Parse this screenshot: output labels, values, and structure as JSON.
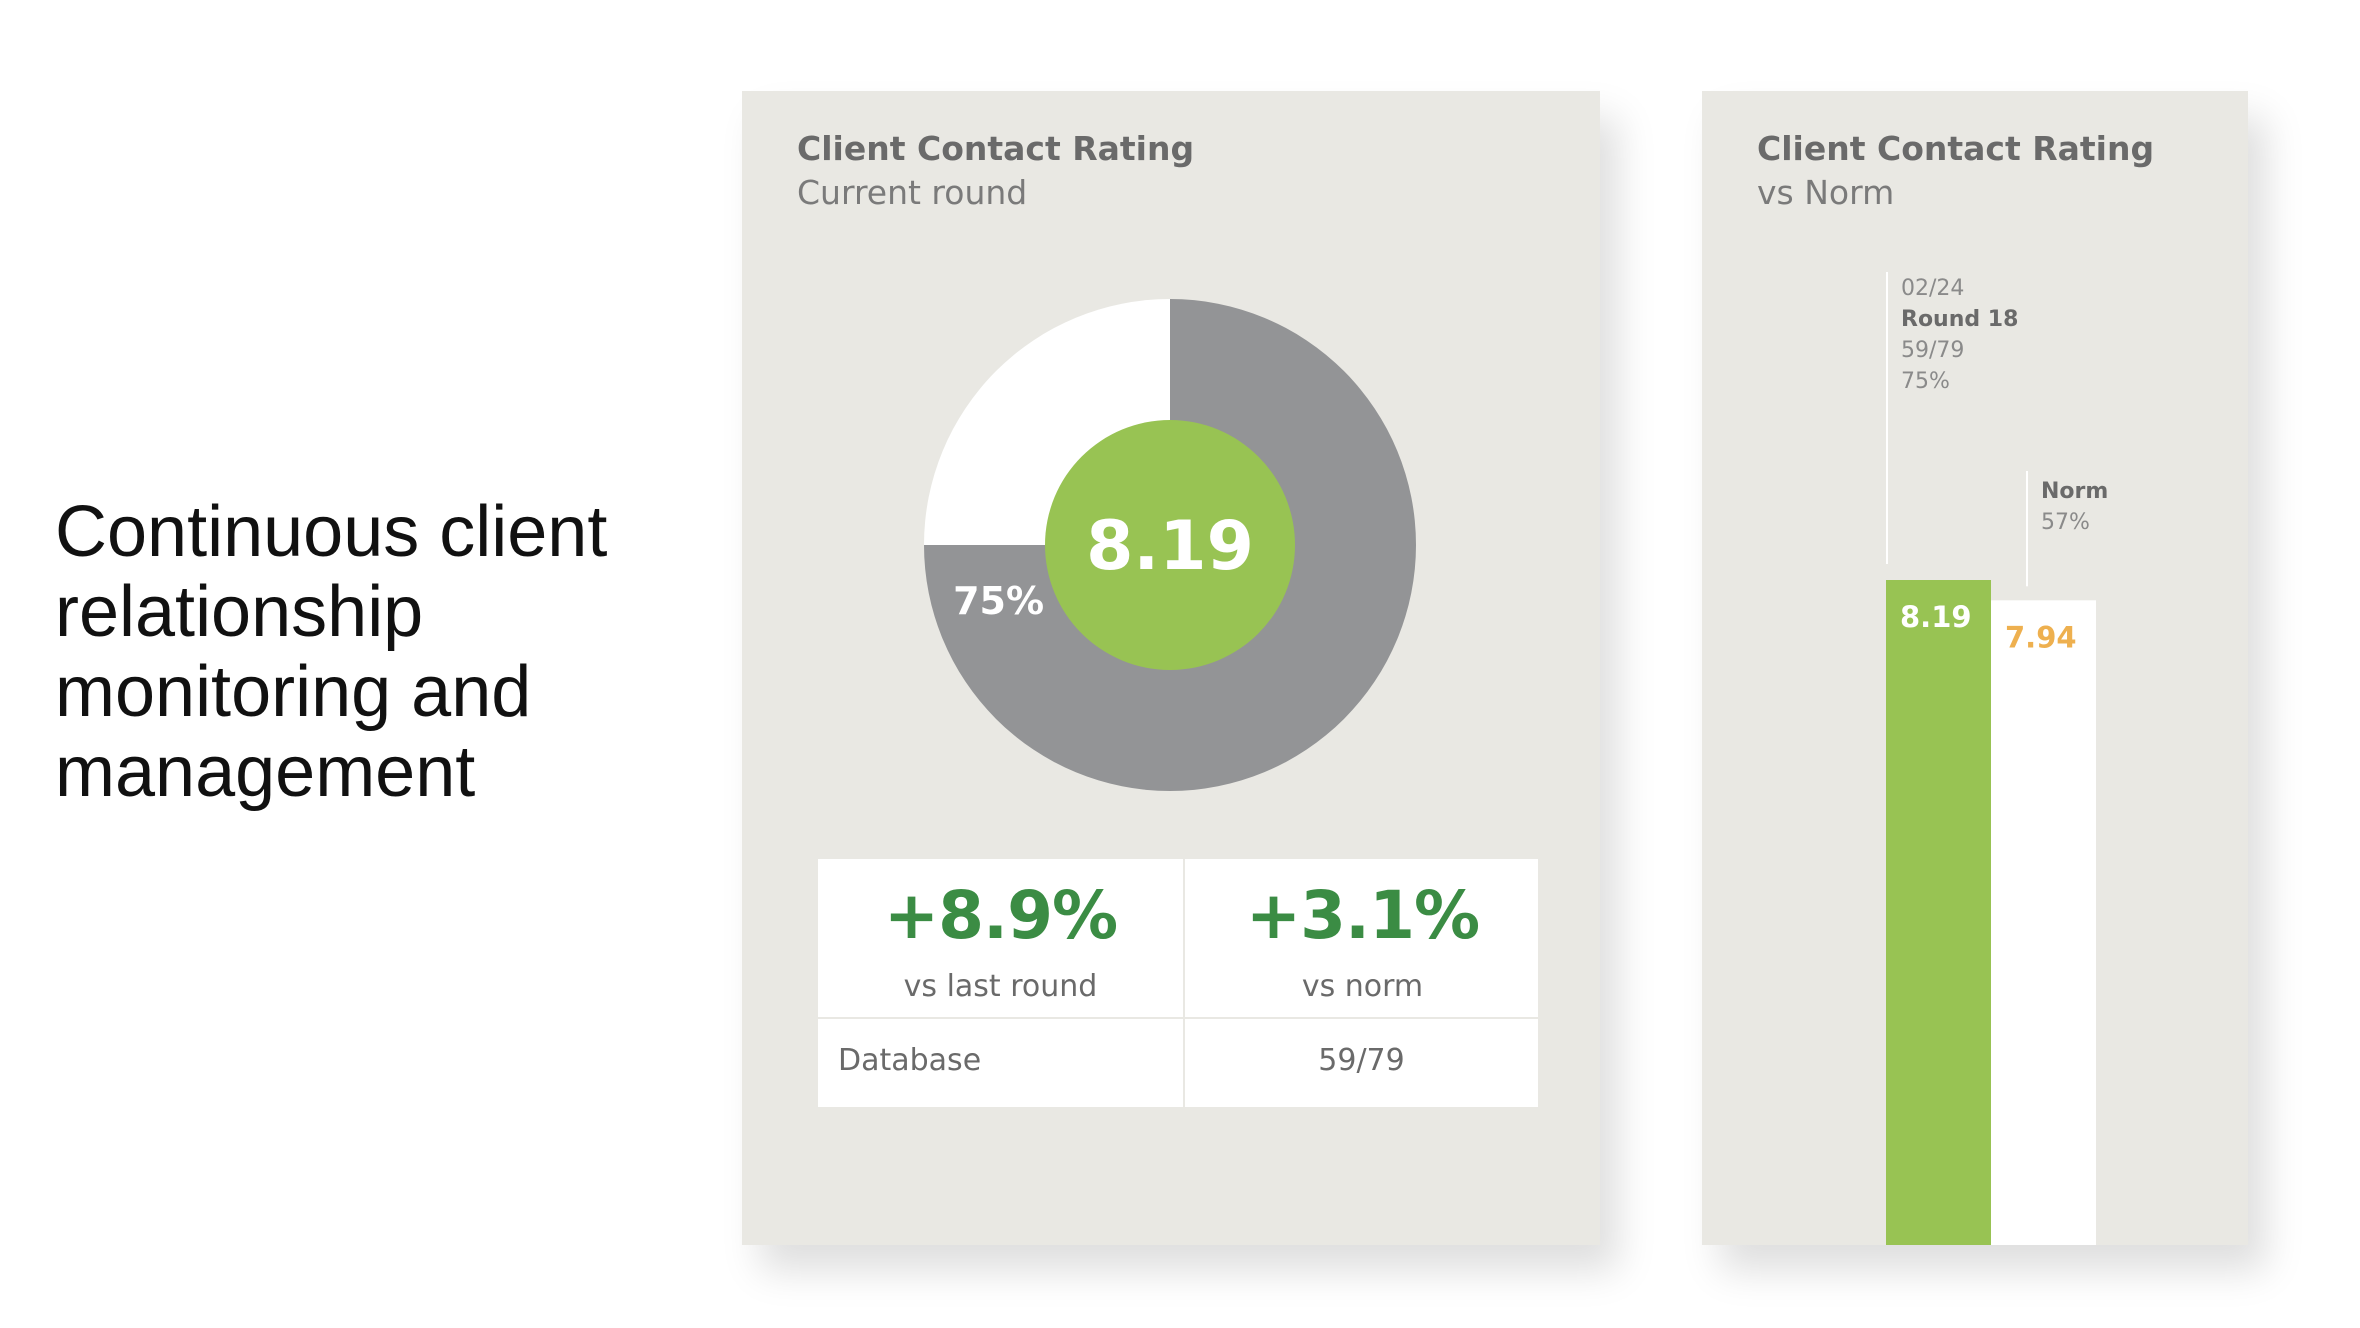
{
  "headline": "Continuous client relationship monitoring and management",
  "colors": {
    "panel": "#e9e8e3",
    "green": "#98c353",
    "grey": "#939496",
    "stat_green": "#3b8c44",
    "orange": "#eeb04f"
  },
  "chart_data": [
    {
      "type": "pie",
      "title": "Client Contact Rating",
      "subtitle": "Current round",
      "center_value": "8.19",
      "slices": [
        {
          "label": "75%",
          "value": 75,
          "color": "#939496"
        },
        {
          "label": "",
          "value": 25,
          "color": "#ffffff"
        }
      ],
      "stats": {
        "vs_last_round_value": "+8.9%",
        "vs_last_round_label": "vs last round",
        "vs_norm_value": "+3.1%",
        "vs_norm_label": "vs norm",
        "database_label": "Database",
        "database_value": "59/79"
      }
    },
    {
      "type": "bar",
      "title": "Client Contact Rating",
      "subtitle": "vs Norm",
      "ylim": [
        0,
        10
      ],
      "bars": [
        {
          "value": 8.19,
          "value_label": "8.19",
          "color": "#98c353",
          "annotation": [
            "02/24",
            "Round 18",
            "59/79",
            "75%"
          ]
        },
        {
          "value": 7.94,
          "value_label": "7.94",
          "color": "#ffffff",
          "label_color": "#eeb04f",
          "annotation": [
            "Norm",
            "57%"
          ]
        }
      ]
    }
  ]
}
